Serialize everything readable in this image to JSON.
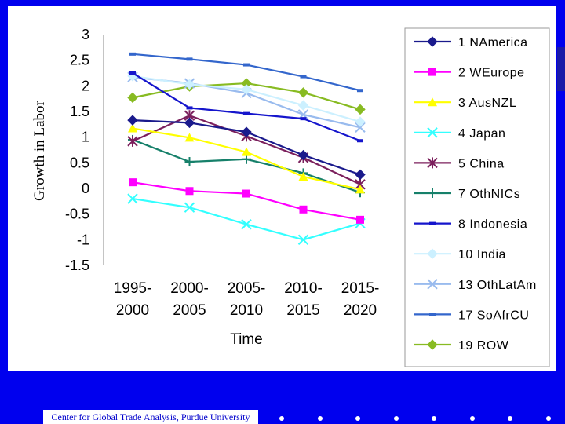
{
  "chart_data": {
    "type": "line",
    "title": "",
    "xlabel": "Time",
    "ylabel": "Growth in Labor",
    "ylim": [
      -1.5,
      3
    ],
    "yticks": [
      "3",
      "2.5",
      "2",
      "1.5",
      "1",
      "0.5",
      "0",
      "-0.5",
      "-1",
      "-1.5"
    ],
    "ytick_values": [
      3,
      2.5,
      2,
      1.5,
      1,
      0.5,
      0,
      -0.5,
      -1,
      -1.5
    ],
    "categories": [
      [
        "1995-",
        "2000"
      ],
      [
        "2000-",
        "2005"
      ],
      [
        "2005-",
        "2010"
      ],
      [
        "2010-",
        "2015"
      ],
      [
        "2015-",
        "2020"
      ]
    ],
    "grid": false,
    "legend_position": "right",
    "series": [
      {
        "name": "1 NAmerica",
        "color": "#1a1a8c",
        "marker": "diamond",
        "values": [
          1.33,
          1.28,
          1.1,
          0.65,
          0.27
        ]
      },
      {
        "name": "2 WEurope",
        "color": "#ff00ff",
        "marker": "square",
        "values": [
          0.12,
          -0.05,
          -0.1,
          -0.41,
          -0.61
        ]
      },
      {
        "name": "3 AusNZL",
        "color": "#ffff00",
        "marker": "triangle",
        "values": [
          1.17,
          0.99,
          0.71,
          0.23,
          -0.02
        ]
      },
      {
        "name": "4 Japan",
        "color": "#33ffff",
        "marker": "x",
        "values": [
          -0.2,
          -0.37,
          -0.7,
          -1.0,
          -0.68
        ]
      },
      {
        "name": "5 China",
        "color": "#7b1f5c",
        "marker": "star",
        "values": [
          0.92,
          1.42,
          1.02,
          0.6,
          0.08
        ]
      },
      {
        "name": "7 OthNICs",
        "color": "#16806a",
        "marker": "plus",
        "values": [
          0.95,
          0.52,
          0.57,
          0.3,
          -0.08
        ]
      },
      {
        "name": "8 Indonesia",
        "color": "#1515cc",
        "marker": "dash",
        "values": [
          2.25,
          1.57,
          1.46,
          1.36,
          0.93
        ]
      },
      {
        "name": "10 India",
        "color": "#ccf0ff",
        "marker": "diamond",
        "values": [
          2.19,
          2.03,
          1.93,
          1.62,
          1.3
        ]
      },
      {
        "name": "13 OthLatAm",
        "color": "#99bbee",
        "marker": "x",
        "values": [
          2.17,
          2.05,
          1.86,
          1.44,
          1.19
        ]
      },
      {
        "name": "17 SoAfrCU",
        "color": "#3366cc",
        "marker": "dash",
        "values": [
          2.62,
          2.52,
          2.41,
          2.18,
          1.91
        ]
      },
      {
        "name": "19 ROW",
        "color": "#88bb22",
        "marker": "diamond",
        "values": [
          1.77,
          1.99,
          2.05,
          1.87,
          1.54
        ]
      }
    ]
  },
  "footer": {
    "label": "Center for Global Trade Analysis, Purdue University",
    "dot_count": 8
  }
}
